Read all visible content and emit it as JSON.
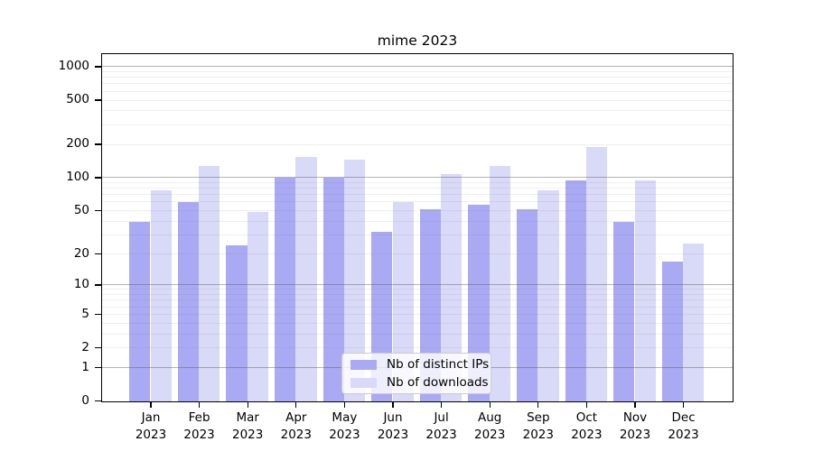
{
  "chart_data": {
    "type": "bar",
    "title": "mime 2023",
    "categories": [
      "Jan",
      "Feb",
      "Mar",
      "Apr",
      "May",
      "Jun",
      "Jul",
      "Aug",
      "Sep",
      "Oct",
      "Nov",
      "Dec"
    ],
    "x_tick_year": "2023",
    "series": [
      {
        "name": "Nb of distinct IPs",
        "color": "#a9a9f4",
        "values": [
          40,
          60,
          24,
          100,
          100,
          32,
          52,
          57,
          52,
          95,
          40,
          17
        ]
      },
      {
        "name": "Nb of downloads",
        "color": "#d9d9f8",
        "values": [
          78,
          128,
          49,
          154,
          148,
          61,
          109,
          128,
          77,
          190,
          95,
          25
        ]
      }
    ],
    "y_axis": {
      "scale": "log10(value+1)",
      "tick_labels": [
        1000,
        500,
        200,
        100,
        50,
        20,
        10,
        5,
        2,
        1,
        0
      ],
      "major_gridlines": [
        1,
        10,
        100,
        1000
      ],
      "ylim": [
        0,
        1283
      ]
    },
    "grid": true,
    "legend_position": "lower center"
  },
  "colors": {
    "background": "#ffffff",
    "spine": "#000000",
    "major_gridline": "#b3b3b3",
    "minor_gridline": "#ebebeb",
    "text": "#000000"
  }
}
